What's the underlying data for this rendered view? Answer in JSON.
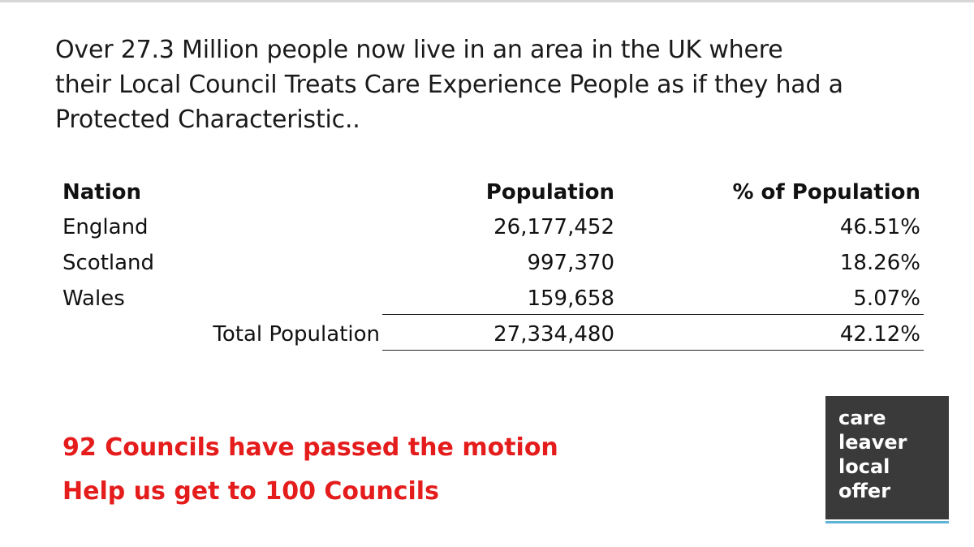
{
  "headline": {
    "line1": "Over 27.3 Million people now live in an area in the UK where",
    "line2": "their Local Council Treats Care Experience People as if they had a",
    "line3": "Protected Characteristic.."
  },
  "table": {
    "headers": {
      "nation": "Nation",
      "population": "Population",
      "percent": "% of Population"
    },
    "rows": [
      {
        "nation": "England",
        "population": "26,177,452",
        "percent": "46.51%"
      },
      {
        "nation": "Scotland",
        "population": "997,370",
        "percent": "18.26%"
      },
      {
        "nation": "Wales",
        "population": "159,658",
        "percent": "5.07%"
      }
    ],
    "total": {
      "label": "Total Population",
      "population": "27,334,480",
      "percent": "42.12%"
    }
  },
  "cta": {
    "line1": "92 Councils have passed the motion",
    "line2": "Help us get to 100 Councils"
  },
  "logo": {
    "line1": "care",
    "line2": "leaver",
    "line3": "local",
    "line4": "offer"
  },
  "colors": {
    "cta_red": "#e51c1c",
    "logo_bg": "#3a3a3a",
    "logo_accent": "#5fb3d6"
  }
}
